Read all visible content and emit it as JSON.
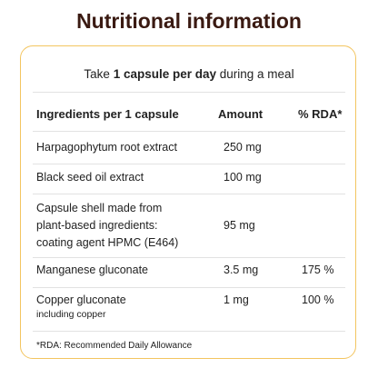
{
  "title": "Nutritional information",
  "intro": {
    "before": "Take ",
    "bold": "1 capsule per day",
    "after": " during a meal"
  },
  "table": {
    "headers": [
      "Ingredients per 1 capsule",
      "Amount",
      "% RDA*"
    ],
    "rows": [
      {
        "name": [
          "Harpagophytum root extract"
        ],
        "amount": "250 mg",
        "rda": null
      },
      {
        "name": [
          "Black seed oil extract"
        ],
        "amount": "100 mg",
        "rda": null
      },
      {
        "name": [
          "Capsule shell made from",
          "plant-based ingredients:",
          "coating agent HPMC (E464)"
        ],
        "amount": "95 mg",
        "rda": null
      },
      {
        "name": [
          "Manganese gluconate"
        ],
        "amount": "3.5 mg",
        "rda": "175 %"
      },
      {
        "name": [
          "Copper gluconate"
        ],
        "note": "including copper",
        "amount": "1 mg",
        "rda": "100 %"
      }
    ]
  },
  "footnote": "*RDA: Recommended Daily Allowance"
}
